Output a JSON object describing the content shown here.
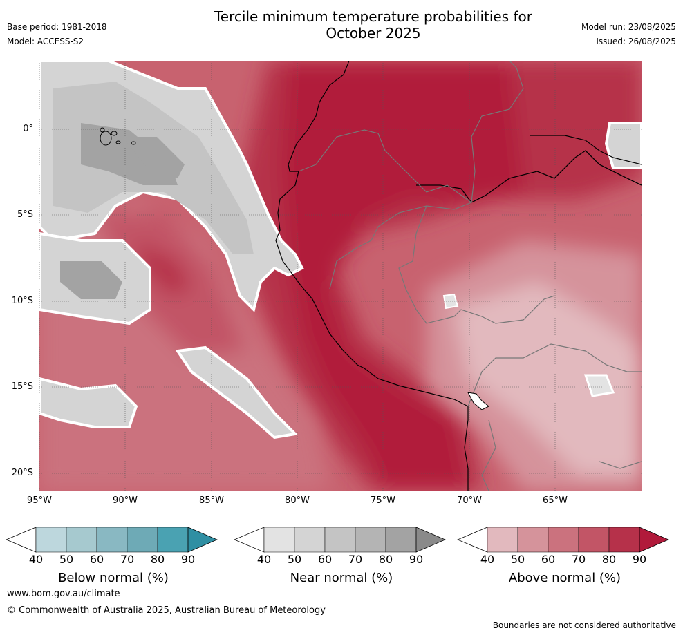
{
  "header": {
    "title_line1": "Tercile minimum temperature probabilities for",
    "title_line2": "October 2025",
    "base_period": "Base period: 1981-2018",
    "model": "Model: ACCESS-S2",
    "model_run": "Model run: 23/08/2025",
    "issued": "Issued: 26/08/2025"
  },
  "axes": {
    "lat_labels": [
      "0°",
      "5°S",
      "10°S",
      "15°S",
      "20°S"
    ],
    "lon_labels": [
      "95°W",
      "90°W",
      "85°W",
      "80°W",
      "75°W",
      "70°W",
      "65°W"
    ]
  },
  "colorbars": [
    {
      "label": "Below normal (%)",
      "ticks": [
        "40",
        "50",
        "60",
        "70",
        "80",
        "90"
      ],
      "colors": [
        "#bdd7dd",
        "#a6c9cf",
        "#89b8c2",
        "#6eaab6",
        "#4aa2b2",
        "#2f8fa3"
      ]
    },
    {
      "label": "Near normal (%)",
      "ticks": [
        "40",
        "50",
        "60",
        "70",
        "80",
        "90"
      ],
      "colors": [
        "#e3e3e3",
        "#d4d4d4",
        "#c4c4c4",
        "#b4b4b4",
        "#a3a3a3",
        "#8a8a8a"
      ]
    },
    {
      "label": "Above normal (%)",
      "ticks": [
        "40",
        "50",
        "60",
        "70",
        "80",
        "90"
      ],
      "colors": [
        "#e2b9be",
        "#d5939b",
        "#cb727e",
        "#c25566",
        "#b6314a",
        "#b11a3b"
      ]
    }
  ],
  "footer": {
    "website": "www.bom.gov.au/climate",
    "copyright": "© Commonwealth of Australia 2025, Australian Bureau of Meteorology",
    "disclaimer": "Boundaries are not considered authoritative"
  }
}
